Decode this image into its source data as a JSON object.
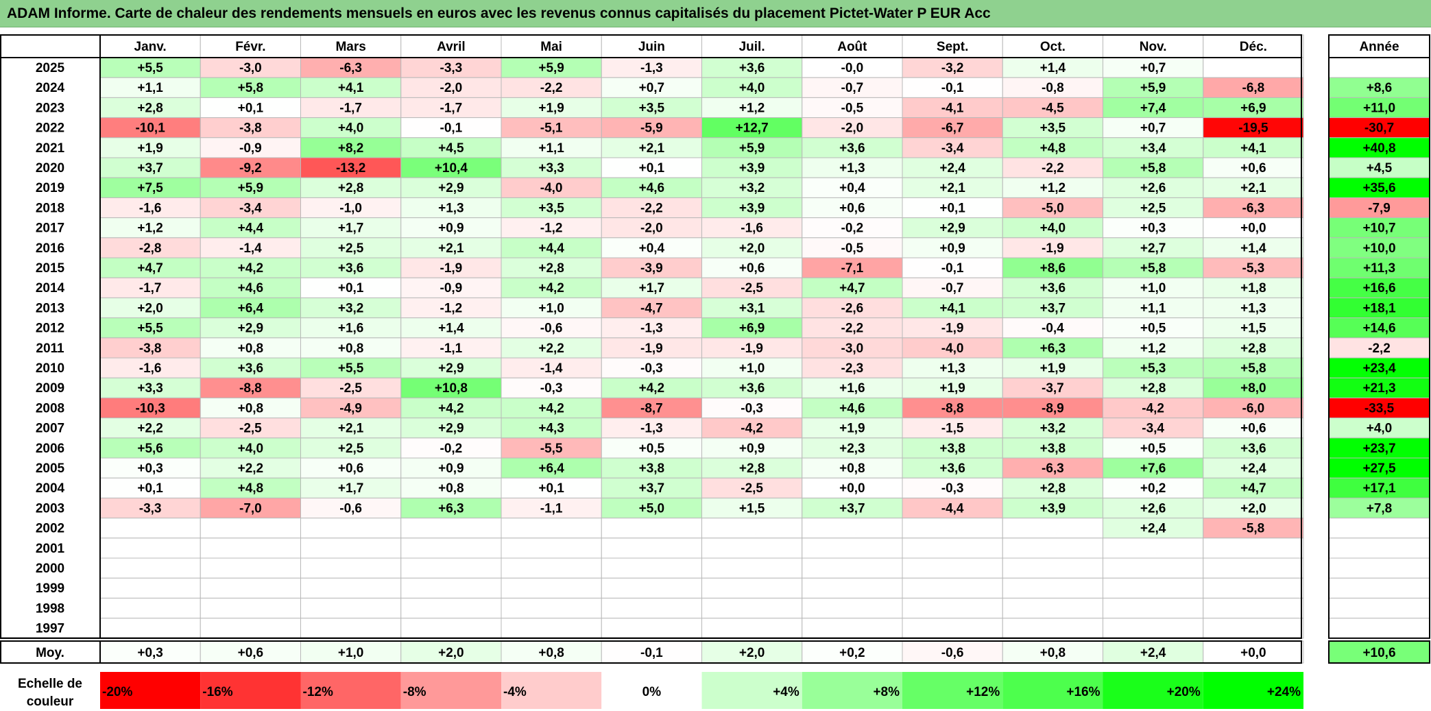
{
  "title": "ADAM Informe. Carte de chaleur des rendements mensuels en euros avec les revenus connus capitalisés du placement Pictet-Water P EUR Acc",
  "chart_data": {
    "type": "heatmap",
    "months": [
      "Janv.",
      "Févr.",
      "Mars",
      "Avril",
      "Mai",
      "Juin",
      "Juil.",
      "Août",
      "Sept.",
      "Oct.",
      "Nov.",
      "Déc."
    ],
    "annual_header": "Année",
    "rows": [
      {
        "year": "2025",
        "values": [
          "+5,5",
          "-3,0",
          "-6,3",
          "-3,3",
          "+5,9",
          "-1,3",
          "+3,6",
          "-0,0",
          "-3,2",
          "+1,4",
          "+0,7",
          ""
        ],
        "annual": ""
      },
      {
        "year": "2024",
        "values": [
          "+1,1",
          "+5,8",
          "+4,1",
          "-2,0",
          "-2,2",
          "+0,7",
          "+4,0",
          "-0,7",
          "-0,1",
          "-0,8",
          "+5,9",
          "-6,8"
        ],
        "annual": "+8,6"
      },
      {
        "year": "2023",
        "values": [
          "+2,8",
          "+0,1",
          "-1,7",
          "-1,7",
          "+1,9",
          "+3,5",
          "+1,2",
          "-0,5",
          "-4,1",
          "-4,5",
          "+7,4",
          "+6,9"
        ],
        "annual": "+11,0"
      },
      {
        "year": "2022",
        "values": [
          "-10,1",
          "-3,8",
          "+4,0",
          "-0,1",
          "-5,1",
          "-5,9",
          "+12,7",
          "-2,0",
          "-6,7",
          "+3,5",
          "+0,7",
          "-19,5"
        ],
        "annual": "-30,7"
      },
      {
        "year": "2021",
        "values": [
          "+1,9",
          "-0,9",
          "+8,2",
          "+4,5",
          "+1,1",
          "+2,1",
          "+5,9",
          "+3,6",
          "-3,4",
          "+4,8",
          "+3,4",
          "+4,1"
        ],
        "annual": "+40,8"
      },
      {
        "year": "2020",
        "values": [
          "+3,7",
          "-9,2",
          "-13,2",
          "+10,4",
          "+3,3",
          "+0,1",
          "+3,9",
          "+1,3",
          "+2,4",
          "-2,2",
          "+5,8",
          "+0,6"
        ],
        "annual": "+4,5"
      },
      {
        "year": "2019",
        "values": [
          "+7,5",
          "+5,9",
          "+2,8",
          "+2,9",
          "-4,0",
          "+4,6",
          "+3,2",
          "+0,4",
          "+2,1",
          "+1,2",
          "+2,6",
          "+2,1"
        ],
        "annual": "+35,6"
      },
      {
        "year": "2018",
        "values": [
          "-1,6",
          "-3,4",
          "-1,0",
          "+1,3",
          "+3,5",
          "-2,2",
          "+3,9",
          "+0,6",
          "+0,1",
          "-5,0",
          "+2,5",
          "-6,3"
        ],
        "annual": "-7,9"
      },
      {
        "year": "2017",
        "values": [
          "+1,2",
          "+4,4",
          "+1,7",
          "+0,9",
          "-1,2",
          "-2,0",
          "-1,6",
          "-0,2",
          "+2,9",
          "+4,0",
          "+0,3",
          "+0,0"
        ],
        "annual": "+10,7"
      },
      {
        "year": "2016",
        "values": [
          "-2,8",
          "-1,4",
          "+2,5",
          "+2,1",
          "+4,4",
          "+0,4",
          "+2,0",
          "-0,5",
          "+0,9",
          "-1,9",
          "+2,7",
          "+1,4"
        ],
        "annual": "+10,0"
      },
      {
        "year": "2015",
        "values": [
          "+4,7",
          "+4,2",
          "+3,6",
          "-1,9",
          "+2,8",
          "-3,9",
          "+0,6",
          "-7,1",
          "-0,1",
          "+8,6",
          "+5,8",
          "-5,3"
        ],
        "annual": "+11,3"
      },
      {
        "year": "2014",
        "values": [
          "-1,7",
          "+4,6",
          "+0,1",
          "-0,9",
          "+4,2",
          "+1,7",
          "-2,5",
          "+4,7",
          "-0,7",
          "+3,6",
          "+1,0",
          "+1,8"
        ],
        "annual": "+16,6"
      },
      {
        "year": "2013",
        "values": [
          "+2,0",
          "+6,4",
          "+3,2",
          "-1,2",
          "+1,0",
          "-4,7",
          "+3,1",
          "-2,6",
          "+4,1",
          "+3,7",
          "+1,1",
          "+1,3"
        ],
        "annual": "+18,1"
      },
      {
        "year": "2012",
        "values": [
          "+5,5",
          "+2,9",
          "+1,6",
          "+1,4",
          "-0,6",
          "-1,3",
          "+6,9",
          "-2,2",
          "-1,9",
          "-0,4",
          "+0,5",
          "+1,5"
        ],
        "annual": "+14,6"
      },
      {
        "year": "2011",
        "values": [
          "-3,8",
          "+0,8",
          "+0,8",
          "-1,1",
          "+2,2",
          "-1,9",
          "-1,9",
          "-3,0",
          "-4,0",
          "+6,3",
          "+1,2",
          "+2,8"
        ],
        "annual": "-2,2"
      },
      {
        "year": "2010",
        "values": [
          "-1,6",
          "+3,6",
          "+5,5",
          "+2,9",
          "-1,4",
          "-0,3",
          "+1,0",
          "-2,3",
          "+1,3",
          "+1,9",
          "+5,3",
          "+5,8"
        ],
        "annual": "+23,4"
      },
      {
        "year": "2009",
        "values": [
          "+3,3",
          "-8,8",
          "-2,5",
          "+10,8",
          "-0,3",
          "+4,2",
          "+3,6",
          "+1,6",
          "+1,9",
          "-3,7",
          "+2,8",
          "+8,0"
        ],
        "annual": "+21,3"
      },
      {
        "year": "2008",
        "values": [
          "-10,3",
          "+0,8",
          "-4,9",
          "+4,2",
          "+4,2",
          "-8,7",
          "-0,3",
          "+4,6",
          "-8,8",
          "-8,9",
          "-4,2",
          "-6,0"
        ],
        "annual": "-33,5"
      },
      {
        "year": "2007",
        "values": [
          "+2,2",
          "-2,5",
          "+2,1",
          "+2,9",
          "+4,3",
          "-1,3",
          "-4,2",
          "+1,9",
          "-1,5",
          "+3,2",
          "-3,4",
          "+0,6"
        ],
        "annual": "+4,0"
      },
      {
        "year": "2006",
        "values": [
          "+5,6",
          "+4,0",
          "+2,5",
          "-0,2",
          "-5,5",
          "+0,5",
          "+0,9",
          "+2,3",
          "+3,8",
          "+3,8",
          "+0,5",
          "+3,6"
        ],
        "annual": "+23,7"
      },
      {
        "year": "2005",
        "values": [
          "+0,3",
          "+2,2",
          "+0,6",
          "+0,9",
          "+6,4",
          "+3,8",
          "+2,8",
          "+0,8",
          "+3,6",
          "-6,3",
          "+7,6",
          "+2,4"
        ],
        "annual": "+27,5"
      },
      {
        "year": "2004",
        "values": [
          "+0,1",
          "+4,8",
          "+1,7",
          "+0,8",
          "+0,1",
          "+3,7",
          "-2,5",
          "+0,0",
          "-0,3",
          "+2,8",
          "+0,2",
          "+4,7"
        ],
        "annual": "+17,1"
      },
      {
        "year": "2003",
        "values": [
          "-3,3",
          "-7,0",
          "-0,6",
          "+6,3",
          "-1,1",
          "+5,0",
          "+1,5",
          "+3,7",
          "-4,4",
          "+3,9",
          "+2,6",
          "+2,0"
        ],
        "annual": "+7,8"
      },
      {
        "year": "2002",
        "values": [
          "",
          "",
          "",
          "",
          "",
          "",
          "",
          "",
          "",
          "",
          "+2,4",
          "-5,8"
        ],
        "annual": ""
      },
      {
        "year": "2001",
        "values": [
          "",
          "",
          "",
          "",
          "",
          "",
          "",
          "",
          "",
          "",
          "",
          ""
        ],
        "annual": ""
      },
      {
        "year": "2000",
        "values": [
          "",
          "",
          "",
          "",
          "",
          "",
          "",
          "",
          "",
          "",
          "",
          ""
        ],
        "annual": ""
      },
      {
        "year": "1999",
        "values": [
          "",
          "",
          "",
          "",
          "",
          "",
          "",
          "",
          "",
          "",
          "",
          ""
        ],
        "annual": ""
      },
      {
        "year": "1998",
        "values": [
          "",
          "",
          "",
          "",
          "",
          "",
          "",
          "",
          "",
          "",
          "",
          ""
        ],
        "annual": ""
      },
      {
        "year": "1997",
        "values": [
          "",
          "",
          "",
          "",
          "",
          "",
          "",
          "",
          "",
          "",
          "",
          ""
        ],
        "annual": ""
      }
    ],
    "average": {
      "label": "Moy.",
      "values": [
        "+0,3",
        "+0,6",
        "+1,0",
        "+2,0",
        "+0,8",
        "-0,1",
        "+2,0",
        "+0,2",
        "-0,6",
        "+0,8",
        "+2,4",
        "+0,0"
      ],
      "annual": "+10,6"
    },
    "color_scale": {
      "label_line1": "Echelle de",
      "label_line2": "couleur",
      "steps": [
        {
          "label": "-20%",
          "value": -20,
          "color": "#ff0000"
        },
        {
          "label": "-16%",
          "value": -16,
          "color": "#ff3333"
        },
        {
          "label": "-12%",
          "value": -12,
          "color": "#ff6666"
        },
        {
          "label": "-8%",
          "value": -8,
          "color": "#ff9999"
        },
        {
          "label": "-4%",
          "value": -4,
          "color": "#ffcccc"
        },
        {
          "label": "0%",
          "value": 0,
          "color": "#ffffff"
        },
        {
          "label": "+4%",
          "value": 4,
          "color": "#ccffcc"
        },
        {
          "label": "+8%",
          "value": 8,
          "color": "#99ff99"
        },
        {
          "label": "+12%",
          "value": 12,
          "color": "#66ff66"
        },
        {
          "label": "+16%",
          "value": 16,
          "color": "#4dff4d"
        },
        {
          "label": "+20%",
          "value": 20,
          "color": "#1aff1a"
        },
        {
          "label": "+24%",
          "value": 24,
          "color": "#00ff00"
        }
      ]
    }
  }
}
